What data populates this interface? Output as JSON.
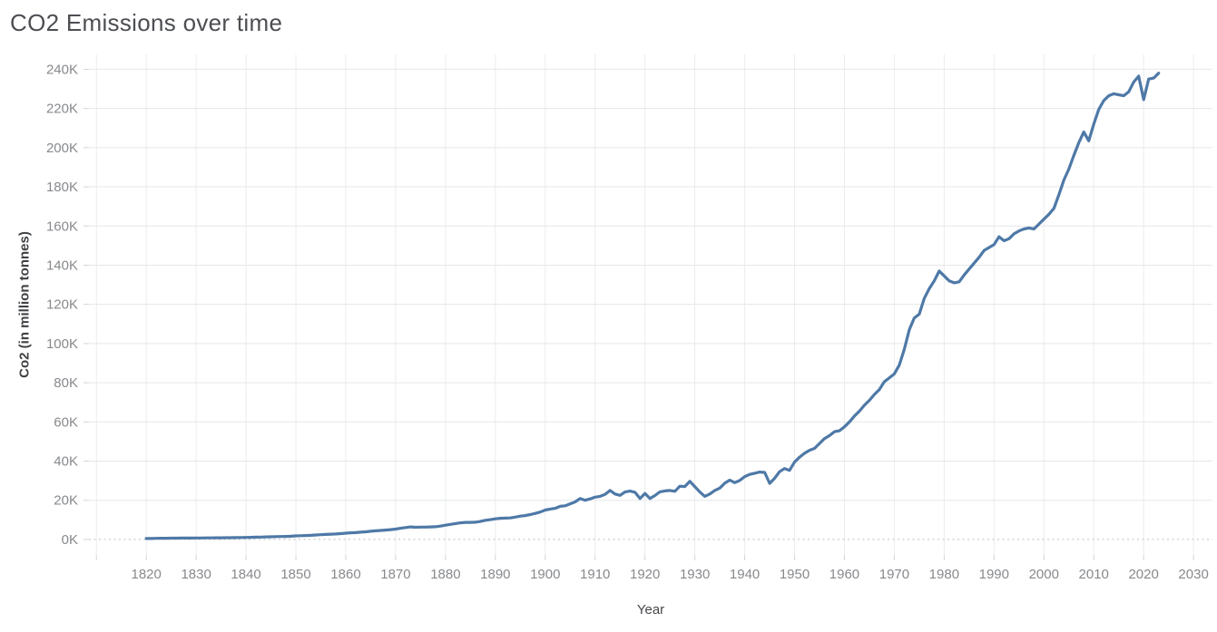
{
  "header": {
    "title": "CO2 Emissions over time"
  },
  "colors": {
    "background": "#ffffff",
    "line": "#4e79a7",
    "gridline_horizontal": "#e6e7e9",
    "gridline_vertical": "#ebecee",
    "zero_line": "#bdbfc2",
    "tick_mark": "#d4d5d7",
    "tick_label": "#87898c",
    "axis_title": "#45474a",
    "chart_title": "#4c4e52"
  },
  "chart_data": {
    "type": "line",
    "title": "CO2 Emissions over time",
    "xlabel": "Year",
    "ylabel": "Co2 (in million tonnes)",
    "unit": "thousand million tonnes (K)",
    "legend": "none",
    "grid": true,
    "markers": false,
    "xlim": [
      1808.5,
      2033.8
    ],
    "ylim": [
      -7.9,
      247.6
    ],
    "x_axis": {
      "grid_years": [
        1810,
        1820,
        1830,
        1840,
        1850,
        1860,
        1870,
        1880,
        1890,
        1900,
        1910,
        1920,
        1930,
        1940,
        1950,
        1960,
        1970,
        1980,
        1990,
        2000,
        2010,
        2020,
        2030
      ],
      "tick_years": [
        1820,
        1830,
        1840,
        1850,
        1860,
        1870,
        1880,
        1890,
        1900,
        1910,
        1920,
        1930,
        1940,
        1950,
        1960,
        1970,
        1980,
        1990,
        2000,
        2010,
        2020,
        2030
      ],
      "tick_labels": [
        "1820",
        "1830",
        "1840",
        "1850",
        "1860",
        "1870",
        "1880",
        "1890",
        "1900",
        "1910",
        "1920",
        "1930",
        "1940",
        "1950",
        "1960",
        "1970",
        "1980",
        "1990",
        "2000",
        "2010",
        "2020",
        "2030"
      ]
    },
    "y_axis": {
      "tick_values": [
        0,
        20,
        40,
        60,
        80,
        100,
        120,
        140,
        160,
        180,
        200,
        220,
        240
      ],
      "tick_labels": [
        "0K",
        "20K",
        "40K",
        "60K",
        "80K",
        "100K",
        "120K",
        "140K",
        "160K",
        "180K",
        "200K",
        "220K",
        "240K"
      ],
      "zero_line_value": 0
    },
    "series": [
      {
        "name": "CO2 emissions",
        "x": [
          1820,
          1821,
          1822,
          1823,
          1824,
          1825,
          1826,
          1827,
          1828,
          1829,
          1830,
          1831,
          1832,
          1833,
          1834,
          1835,
          1836,
          1837,
          1838,
          1839,
          1840,
          1841,
          1842,
          1843,
          1844,
          1845,
          1846,
          1847,
          1848,
          1849,
          1850,
          1851,
          1852,
          1853,
          1854,
          1855,
          1856,
          1857,
          1858,
          1859,
          1860,
          1861,
          1862,
          1863,
          1864,
          1865,
          1866,
          1867,
          1868,
          1869,
          1870,
          1871,
          1872,
          1873,
          1874,
          1875,
          1876,
          1877,
          1878,
          1879,
          1880,
          1881,
          1882,
          1883,
          1884,
          1885,
          1886,
          1887,
          1888,
          1889,
          1890,
          1891,
          1892,
          1893,
          1894,
          1895,
          1896,
          1897,
          1898,
          1899,
          1900,
          1901,
          1902,
          1903,
          1904,
          1905,
          1906,
          1907,
          1908,
          1909,
          1910,
          1911,
          1912,
          1913,
          1914,
          1915,
          1916,
          1917,
          1918,
          1919,
          1920,
          1921,
          1922,
          1923,
          1924,
          1925,
          1926,
          1927,
          1928,
          1929,
          1930,
          1931,
          1932,
          1933,
          1934,
          1935,
          1936,
          1937,
          1938,
          1939,
          1940,
          1941,
          1942,
          1943,
          1944,
          1945,
          1946,
          1947,
          1948,
          1949,
          1950,
          1951,
          1952,
          1953,
          1954,
          1955,
          1956,
          1957,
          1958,
          1959,
          1960,
          1961,
          1962,
          1963,
          1964,
          1965,
          1966,
          1967,
          1968,
          1969,
          1970,
          1971,
          1972,
          1973,
          1974,
          1975,
          1976,
          1977,
          1978,
          1979,
          1980,
          1981,
          1982,
          1983,
          1984,
          1985,
          1986,
          1987,
          1988,
          1989,
          1990,
          1991,
          1992,
          1993,
          1994,
          1995,
          1996,
          1997,
          1998,
          1999,
          2000,
          2001,
          2002,
          2003,
          2004,
          2005,
          2006,
          2007,
          2008,
          2009,
          2010,
          2011,
          2012,
          2013,
          2014,
          2015,
          2016,
          2017,
          2018,
          2019,
          2020,
          2021,
          2022,
          2023
        ],
        "y_thousand_mt": [
          0.5,
          0.5,
          0.55,
          0.6,
          0.6,
          0.65,
          0.65,
          0.7,
          0.7,
          0.7,
          0.75,
          0.75,
          0.8,
          0.8,
          0.85,
          0.85,
          0.9,
          0.9,
          0.95,
          1.0,
          1.05,
          1.1,
          1.15,
          1.2,
          1.3,
          1.35,
          1.45,
          1.5,
          1.55,
          1.65,
          1.8,
          1.9,
          2.0,
          2.1,
          2.3,
          2.4,
          2.55,
          2.7,
          2.8,
          3.0,
          3.2,
          3.4,
          3.5,
          3.7,
          3.9,
          4.2,
          4.4,
          4.6,
          4.8,
          5.0,
          5.3,
          5.7,
          6.1,
          6.4,
          6.2,
          6.3,
          6.3,
          6.4,
          6.5,
          6.8,
          7.3,
          7.7,
          8.1,
          8.5,
          8.7,
          8.7,
          8.8,
          9.2,
          9.8,
          10.1,
          10.5,
          10.8,
          10.9,
          11.0,
          11.4,
          11.9,
          12.2,
          12.7,
          13.3,
          14.0,
          15.0,
          15.5,
          15.9,
          16.9,
          17.2,
          18.2,
          19.2,
          20.9,
          20.0,
          20.7,
          21.6,
          22.0,
          23.0,
          25.0,
          23.2,
          22.5,
          24.2,
          24.7,
          24.1,
          20.9,
          23.5,
          20.9,
          22.4,
          24.3,
          24.8,
          25.0,
          24.6,
          27.2,
          27.0,
          29.7,
          27.0,
          24.2,
          22.0,
          23.2,
          25.0,
          26.2,
          28.7,
          30.3,
          29.0,
          30.1,
          32.1,
          33.2,
          33.8,
          34.4,
          34.2,
          28.6,
          31.2,
          34.6,
          36.2,
          35.3,
          39.5,
          42.0,
          44.0,
          45.5,
          46.5,
          49.0,
          51.5,
          53.0,
          55.0,
          55.5,
          57.5,
          60.0,
          63.0,
          65.5,
          68.5,
          71.0,
          74.0,
          76.5,
          80.5,
          82.5,
          84.5,
          89.0,
          97.0,
          107.0,
          113.0,
          115.0,
          123.0,
          128.0,
          132.0,
          137.0,
          134.5,
          132.0,
          131.0,
          131.5,
          135.0,
          138.0,
          141.0,
          144.0,
          147.5,
          149.0,
          150.5,
          154.5,
          152.5,
          153.5,
          156.0,
          157.5,
          158.5,
          159.0,
          158.5,
          161.0,
          163.5,
          166.0,
          169.0,
          176.0,
          183.5,
          189.0,
          196.0,
          202.5,
          208.0,
          203.5,
          212.0,
          219.5,
          224.0,
          226.5,
          227.5,
          227.0,
          226.5,
          228.5,
          233.5,
          236.5,
          224.5,
          235.0,
          235.5,
          238.0
        ]
      }
    ]
  }
}
